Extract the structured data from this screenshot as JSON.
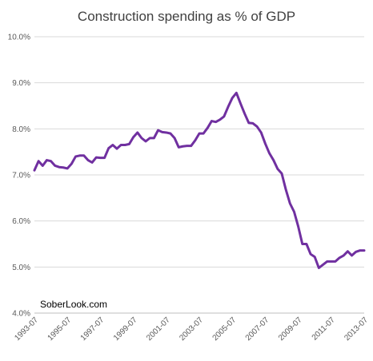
{
  "chart_data": {
    "type": "line",
    "title": "Construction spending as % of GDP",
    "xlabel": "",
    "ylabel": "",
    "ylim": [
      4.0,
      10.0
    ],
    "y_ticks": [
      "4.0%",
      "5.0%",
      "6.0%",
      "7.0%",
      "8.0%",
      "9.0%",
      "10.0%"
    ],
    "y_tick_values": [
      4.0,
      5.0,
      6.0,
      7.0,
      8.0,
      9.0,
      10.0
    ],
    "x_ticks": [
      "1993-07",
      "1995-07",
      "1997-07",
      "1999-07",
      "2001-07",
      "2003-07",
      "2005-07",
      "2007-07",
      "2009-07",
      "2011-07",
      "2013-07"
    ],
    "x_tick_values": [
      1993.5,
      1995.5,
      1997.5,
      1999.5,
      2001.5,
      2003.5,
      2005.5,
      2007.5,
      2009.5,
      2011.5,
      2013.5
    ],
    "xlim": [
      1993.5,
      2013.5
    ],
    "grid": "horizontal",
    "legend": "none",
    "series": [
      {
        "color": "#7030a0",
        "points": [
          [
            1993.5,
            7.1
          ],
          [
            1993.75,
            7.3
          ],
          [
            1994.0,
            7.2
          ],
          [
            1994.25,
            7.32
          ],
          [
            1994.5,
            7.3
          ],
          [
            1994.75,
            7.2
          ],
          [
            1995.0,
            7.17
          ],
          [
            1995.25,
            7.16
          ],
          [
            1995.5,
            7.14
          ],
          [
            1995.75,
            7.24
          ],
          [
            1996.0,
            7.4
          ],
          [
            1996.25,
            7.42
          ],
          [
            1996.5,
            7.42
          ],
          [
            1996.75,
            7.32
          ],
          [
            1997.0,
            7.27
          ],
          [
            1997.25,
            7.38
          ],
          [
            1997.5,
            7.37
          ],
          [
            1997.75,
            7.37
          ],
          [
            1998.0,
            7.58
          ],
          [
            1998.25,
            7.65
          ],
          [
            1998.5,
            7.57
          ],
          [
            1998.75,
            7.65
          ],
          [
            1999.0,
            7.65
          ],
          [
            1999.25,
            7.67
          ],
          [
            1999.5,
            7.82
          ],
          [
            1999.75,
            7.92
          ],
          [
            2000.0,
            7.8
          ],
          [
            2000.25,
            7.73
          ],
          [
            2000.5,
            7.8
          ],
          [
            2000.75,
            7.8
          ],
          [
            2001.0,
            7.97
          ],
          [
            2001.25,
            7.93
          ],
          [
            2001.5,
            7.92
          ],
          [
            2001.75,
            7.9
          ],
          [
            2002.0,
            7.8
          ],
          [
            2002.25,
            7.6
          ],
          [
            2002.5,
            7.62
          ],
          [
            2002.75,
            7.63
          ],
          [
            2003.0,
            7.63
          ],
          [
            2003.25,
            7.75
          ],
          [
            2003.5,
            7.9
          ],
          [
            2003.75,
            7.9
          ],
          [
            2004.0,
            8.02
          ],
          [
            2004.25,
            8.17
          ],
          [
            2004.5,
            8.15
          ],
          [
            2004.75,
            8.2
          ],
          [
            2005.0,
            8.27
          ],
          [
            2005.25,
            8.48
          ],
          [
            2005.5,
            8.67
          ],
          [
            2005.75,
            8.78
          ],
          [
            2006.0,
            8.55
          ],
          [
            2006.25,
            8.33
          ],
          [
            2006.5,
            8.13
          ],
          [
            2006.75,
            8.12
          ],
          [
            2007.0,
            8.05
          ],
          [
            2007.25,
            7.92
          ],
          [
            2007.5,
            7.68
          ],
          [
            2007.75,
            7.47
          ],
          [
            2008.0,
            7.32
          ],
          [
            2008.25,
            7.13
          ],
          [
            2008.5,
            7.03
          ],
          [
            2008.75,
            6.68
          ],
          [
            2009.0,
            6.38
          ],
          [
            2009.25,
            6.2
          ],
          [
            2009.5,
            5.88
          ],
          [
            2009.75,
            5.5
          ],
          [
            2010.0,
            5.5
          ],
          [
            2010.25,
            5.28
          ],
          [
            2010.5,
            5.22
          ],
          [
            2010.75,
            4.98
          ],
          [
            2011.0,
            5.05
          ],
          [
            2011.25,
            5.12
          ],
          [
            2011.5,
            5.12
          ],
          [
            2011.75,
            5.12
          ],
          [
            2012.0,
            5.2
          ],
          [
            2012.25,
            5.25
          ],
          [
            2012.5,
            5.34
          ],
          [
            2012.75,
            5.25
          ],
          [
            2013.0,
            5.33
          ],
          [
            2013.25,
            5.36
          ],
          [
            2013.5,
            5.36
          ]
        ]
      }
    ]
  },
  "watermark": "SoberLook.com"
}
